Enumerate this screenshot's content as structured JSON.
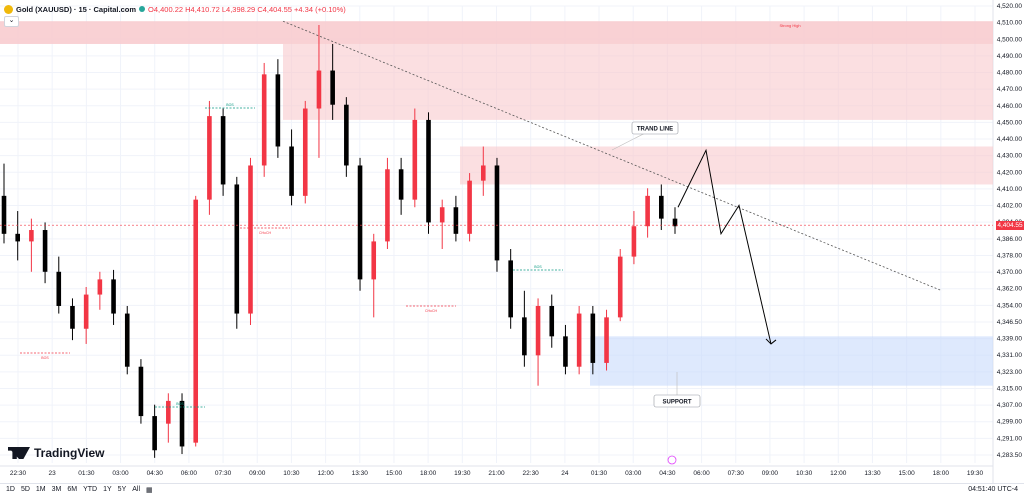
{
  "header": {
    "symbol": "Gold (XAUUSD) · 15 · Capital.com",
    "open": "O4,400.22",
    "high": "H4,410.72",
    "low": "L4,398.29",
    "close": "C4,404.55",
    "change": "+4.34 (+0.10%)",
    "collapse_glyph": "⌄"
  },
  "brand": "TradingView",
  "toolbar": {
    "ranges": [
      "1D",
      "5D",
      "1M",
      "3M",
      "6M",
      "YTD",
      "1Y",
      "5Y",
      "All"
    ],
    "calendar_icon": "calendar-icon",
    "time": "04:51:40 UTC-4"
  },
  "colors": {
    "up": "#f23645",
    "down": "#000000",
    "resistance_zone": "#f8c9cd",
    "support_zone": "#c8dafc",
    "projection": "#000000"
  },
  "chart_data": {
    "type": "candlestick",
    "symbol": "Gold (XAUUSD)",
    "interval": "15",
    "ylim": [
      4283.5,
      4520
    ],
    "y_ticks": [
      "4,520.00",
      "4,510.00",
      "4,500.00",
      "4,490.00",
      "4,480.00",
      "4,470.00",
      "4,460.00",
      "4,450.00",
      "4,440.00",
      "4,430.00",
      "4,420.00",
      "4,410.00",
      "4,402.00",
      "4,394.00",
      "4,386.00",
      "4,378.00",
      "4,370.00",
      "4,362.00",
      "4,354.00",
      "4,346.50",
      "4,339.00",
      "4,331.00",
      "4,323.00",
      "4,315.00",
      "4,307.00",
      "4,299.00",
      "4,291.00",
      "4,283.50"
    ],
    "x_ticks": [
      "22:30",
      "23",
      "01:30",
      "03:00",
      "04:30",
      "06:00",
      "07:30",
      "09:00",
      "10:30",
      "12:00",
      "13:30",
      "15:00",
      "18:00",
      "19:30",
      "21:00",
      "22:30",
      "24",
      "01:30",
      "03:00",
      "04:30",
      "06:00",
      "07:30",
      "09:00",
      "10:30",
      "12:00",
      "13:30",
      "15:00",
      "18:00",
      "19:30"
    ],
    "last_price": "4,404.55",
    "candles": [
      [
        4420,
        4437,
        4395,
        4400
      ],
      [
        4400,
        4412,
        4386,
        4396
      ],
      [
        4396,
        4408,
        4380,
        4402
      ],
      [
        4402,
        4406,
        4374,
        4380
      ],
      [
        4380,
        4388,
        4358,
        4362
      ],
      [
        4362,
        4366,
        4344,
        4350
      ],
      [
        4350,
        4372,
        4342,
        4368
      ],
      [
        4368,
        4380,
        4360,
        4376
      ],
      [
        4376,
        4381,
        4352,
        4358
      ],
      [
        4358,
        4362,
        4326,
        4330
      ],
      [
        4330,
        4334,
        4300,
        4304
      ],
      [
        4304,
        4310,
        4282,
        4286
      ],
      [
        4300,
        4316,
        4290,
        4312
      ],
      [
        4312,
        4316,
        4284,
        4288
      ],
      [
        4290,
        4420,
        4288,
        4418
      ],
      [
        4418,
        4470,
        4410,
        4462
      ],
      [
        4462,
        4466,
        4420,
        4426
      ],
      [
        4426,
        4430,
        4350,
        4358
      ],
      [
        4358,
        4440,
        4352,
        4436
      ],
      [
        4436,
        4490,
        4430,
        4484
      ],
      [
        4484,
        4492,
        4440,
        4446
      ],
      [
        4446,
        4455,
        4415,
        4420
      ],
      [
        4420,
        4470,
        4416,
        4466
      ],
      [
        4466,
        4510,
        4440,
        4486
      ],
      [
        4486,
        4500,
        4460,
        4468
      ],
      [
        4468,
        4472,
        4430,
        4436
      ],
      [
        4436,
        4440,
        4370,
        4376
      ],
      [
        4376,
        4400,
        4356,
        4396
      ],
      [
        4396,
        4440,
        4392,
        4434
      ],
      [
        4434,
        4440,
        4410,
        4418
      ],
      [
        4418,
        4466,
        4414,
        4460
      ],
      [
        4460,
        4464,
        4400,
        4406
      ],
      [
        4406,
        4418,
        4392,
        4414
      ],
      [
        4414,
        4420,
        4396,
        4400
      ],
      [
        4400,
        4432,
        4396,
        4428
      ],
      [
        4428,
        4446,
        4420,
        4436
      ],
      [
        4436,
        4440,
        4380,
        4386
      ],
      [
        4386,
        4392,
        4350,
        4356
      ],
      [
        4356,
        4370,
        4330,
        4336
      ],
      [
        4336,
        4366,
        4320,
        4362
      ],
      [
        4362,
        4368,
        4340,
        4346
      ],
      [
        4346,
        4352,
        4326,
        4330
      ],
      [
        4330,
        4362,
        4326,
        4358
      ],
      [
        4358,
        4362,
        4326,
        4332
      ],
      [
        4332,
        4360,
        4328,
        4356
      ],
      [
        4356,
        4392,
        4354,
        4388
      ],
      [
        4388,
        4412,
        4384,
        4404
      ],
      [
        4404,
        4424,
        4398,
        4420
      ],
      [
        4420,
        4426,
        4402,
        4408
      ],
      [
        4408,
        4414,
        4400,
        4404
      ]
    ],
    "zones": [
      {
        "label": "Strong High",
        "from": 4500,
        "to": 4512
      },
      {
        "label": "",
        "from": 4460,
        "to": 4500
      },
      {
        "label": "",
        "from": 4426,
        "to": 4446
      },
      {
        "label": "",
        "from": 4320,
        "to": 4346
      }
    ],
    "annotations": {
      "trendline_label": "TRAND LINE",
      "support_label": "SUPPORT",
      "strong_high": "Strong High",
      "markers": [
        "BOS",
        "CHoCH",
        "BOS",
        "CHoCH",
        "BOS"
      ]
    }
  }
}
